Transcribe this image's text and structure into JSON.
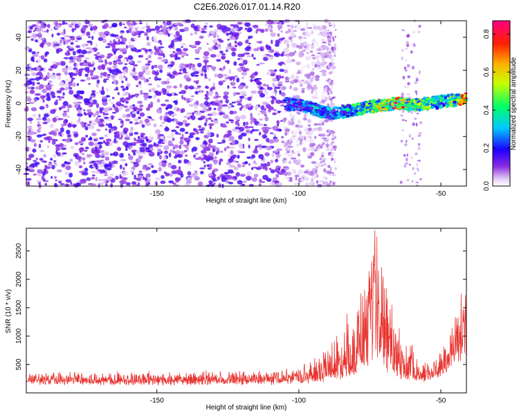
{
  "title": "C2E6.2026.017.01.14.R20",
  "chart_data": [
    {
      "type": "heatmap",
      "xlabel": "Height of straight line (km)",
      "ylabel": "Frequency (Hz)",
      "xlim": [
        -196,
        -41
      ],
      "ylim": [
        -50,
        50
      ],
      "xticks": [
        -150,
        -100,
        -50
      ],
      "yticks": [
        -40,
        -20,
        0,
        20,
        40
      ],
      "colorbar": {
        "label": "Normalized spectral amplitude",
        "range": [
          0.0,
          0.87
        ],
        "ticks": [
          "0.0",
          "0.2",
          "0.4",
          "0.6",
          "0.8"
        ]
      },
      "features": {
        "noise_region_x": [
          -196,
          -88
        ],
        "signal_track": {
          "x": [
            -105,
            -97,
            -92,
            -88,
            -85,
            -80,
            -75,
            -70,
            -65,
            -60,
            -55,
            -50,
            -45,
            -41
          ],
          "y": [
            0,
            -2,
            -5,
            -6,
            -5,
            -4,
            -2,
            -1,
            0,
            -1,
            0,
            1,
            2,
            3
          ],
          "amplitude": [
            0.25,
            0.3,
            0.35,
            0.3,
            0.35,
            0.45,
            0.5,
            0.6,
            0.8,
            0.55,
            0.5,
            0.45,
            0.55,
            0.8
          ]
        }
      }
    },
    {
      "type": "line",
      "xlabel": "Height of straight line (km)",
      "ylabel": "SNR (10 * v/v)",
      "xlim": [
        -196,
        -41
      ],
      "ylim": [
        0,
        2900
      ],
      "xticks": [
        -150,
        -100,
        -50
      ],
      "yticks": [
        500,
        1000,
        1500,
        2000,
        2500
      ],
      "series": [
        {
          "color": "#e8332e",
          "envelope": {
            "x": [
              -196,
              -150,
              -110,
              -100,
              -95,
              -90,
              -85,
              -80,
              -78,
              -75,
              -73,
              -72,
              -70,
              -68,
              -65,
              -62,
              -60,
              -58,
              -55,
              -52,
              -50,
              -47,
              -45,
              -43,
              -41
            ],
            "base": [
              180,
              170,
              180,
              200,
              220,
              250,
              300,
              400,
              500,
              600,
              700,
              600,
              500,
              400,
              300,
              260,
              240,
              220,
              230,
              260,
              300,
              400,
              600,
              700,
              800
            ],
            "peak": [
              330,
              330,
              340,
              420,
              520,
              760,
              1100,
              1300,
              1700,
              1900,
              2880,
              2300,
              2200,
              1550,
              1000,
              820,
              780,
              560,
              520,
              650,
              760,
              900,
              1220,
              1650,
              1900
            ]
          }
        }
      ]
    }
  ]
}
